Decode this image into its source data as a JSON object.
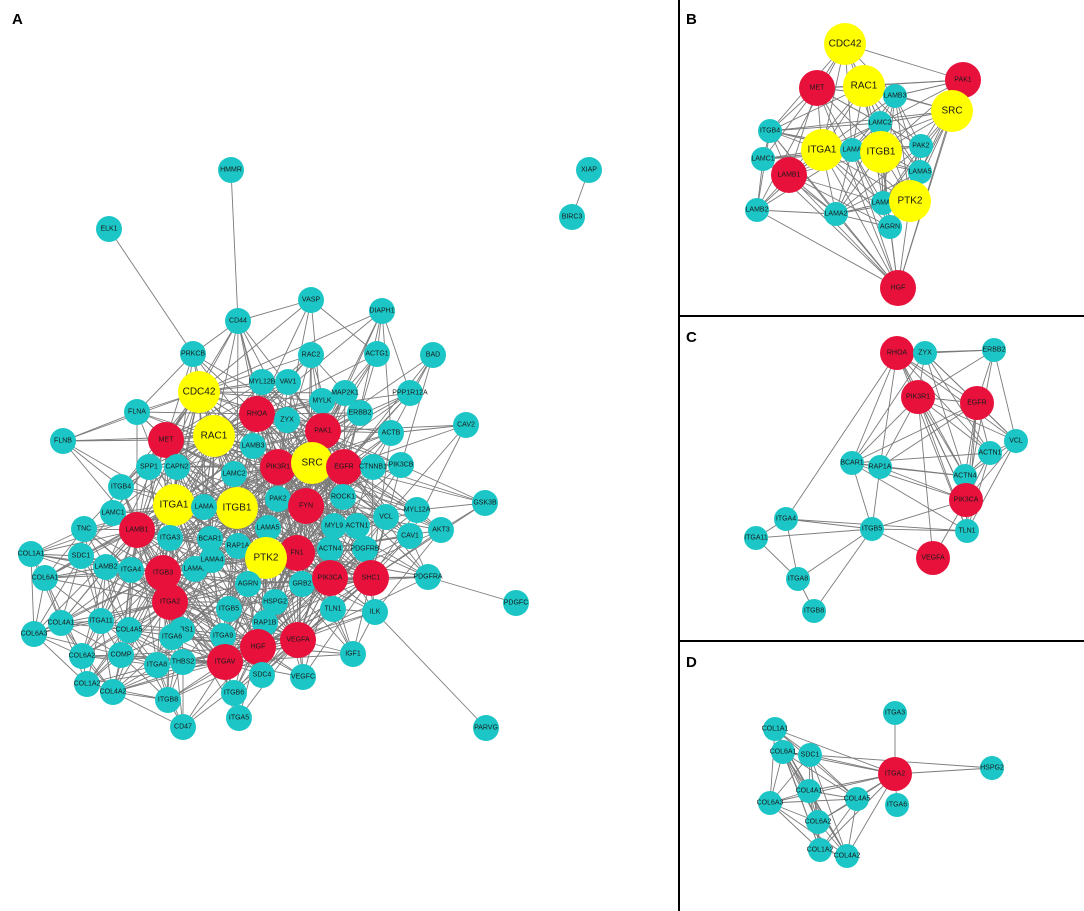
{
  "colors": {
    "hub": "#ffff00",
    "key": "#e8113b",
    "other": "#1cc6c6",
    "edge": "#7a7a7a"
  },
  "panels": [
    {
      "label": "A",
      "nodes": [
        {
          "id": "HMMR",
          "c": "other"
        },
        {
          "id": "ELK1",
          "c": "other"
        },
        {
          "id": "XIAP",
          "c": "other"
        },
        {
          "id": "BIRC3",
          "c": "other"
        },
        {
          "id": "VASP",
          "c": "other"
        },
        {
          "id": "DIAPH1",
          "c": "other"
        },
        {
          "id": "CD44",
          "c": "other"
        },
        {
          "id": "RAC2",
          "c": "other"
        },
        {
          "id": "PRKCB",
          "c": "other"
        },
        {
          "id": "ACTG1",
          "c": "other"
        },
        {
          "id": "BAD",
          "c": "other"
        },
        {
          "id": "MYL12B",
          "c": "other"
        },
        {
          "id": "VAV1",
          "c": "other"
        },
        {
          "id": "CDC42",
          "c": "hub"
        },
        {
          "id": "MYLK",
          "c": "other"
        },
        {
          "id": "MAP2K1",
          "c": "other"
        },
        {
          "id": "PPP1R12A",
          "c": "other"
        },
        {
          "id": "FLNA",
          "c": "other"
        },
        {
          "id": "RHOA",
          "c": "key"
        },
        {
          "id": "ZYX",
          "c": "other"
        },
        {
          "id": "ERBB2",
          "c": "other"
        },
        {
          "id": "CAV2",
          "c": "other"
        },
        {
          "id": "MET",
          "c": "key"
        },
        {
          "id": "RAC1",
          "c": "hub"
        },
        {
          "id": "LAMB3",
          "c": "other"
        },
        {
          "id": "PAK1",
          "c": "key"
        },
        {
          "id": "ACTB",
          "c": "other"
        },
        {
          "id": "FLNB",
          "c": "other"
        },
        {
          "id": "SPP1",
          "c": "other"
        },
        {
          "id": "CAPN2",
          "c": "other"
        },
        {
          "id": "PIK3R1",
          "c": "key"
        },
        {
          "id": "SRC",
          "c": "hub"
        },
        {
          "id": "EGFR",
          "c": "key"
        },
        {
          "id": "CTNNB1",
          "c": "other"
        },
        {
          "id": "PIK3CB",
          "c": "other"
        },
        {
          "id": "ITGB4",
          "c": "other"
        },
        {
          "id": "LAMC2",
          "c": "other"
        },
        {
          "id": "ROCK1",
          "c": "other"
        },
        {
          "id": "GSK3B",
          "c": "other"
        },
        {
          "id": "ITGA1",
          "c": "hub"
        },
        {
          "id": "ITGB1",
          "c": "hub"
        },
        {
          "id": "PAK2",
          "c": "other"
        },
        {
          "id": "FYN",
          "c": "key"
        },
        {
          "id": "MYL12A",
          "c": "other"
        },
        {
          "id": "LAMC1",
          "c": "other"
        },
        {
          "id": "LAMA",
          "c": "other"
        },
        {
          "id": "VCL",
          "c": "other"
        },
        {
          "id": "AKT3",
          "c": "other"
        },
        {
          "id": "TNC",
          "c": "other"
        },
        {
          "id": "LAMB1",
          "c": "key"
        },
        {
          "id": "ITGA3",
          "c": "other"
        },
        {
          "id": "LAMA5",
          "c": "other"
        },
        {
          "id": "MYL9",
          "c": "other"
        },
        {
          "id": "ACTN1",
          "c": "other"
        },
        {
          "id": "CAV1",
          "c": "other"
        },
        {
          "id": "BCAR1",
          "c": "other"
        },
        {
          "id": "RAP1A",
          "c": "other"
        },
        {
          "id": "COL1A1",
          "c": "other"
        },
        {
          "id": "SDC1",
          "c": "other"
        },
        {
          "id": "LAMB2",
          "c": "other"
        },
        {
          "id": "FN1",
          "c": "key"
        },
        {
          "id": "ACTN4",
          "c": "other"
        },
        {
          "id": "PDGFRB",
          "c": "other"
        },
        {
          "id": "PTK2",
          "c": "hub"
        },
        {
          "id": "COL6A1",
          "c": "other"
        },
        {
          "id": "ITGA4",
          "c": "other"
        },
        {
          "id": "LAMA2",
          "c": "other"
        },
        {
          "id": "LAMA4",
          "c": "other"
        },
        {
          "id": "ITGB3",
          "c": "key"
        },
        {
          "id": "PDGFRA",
          "c": "other"
        },
        {
          "id": "SHC1",
          "c": "key"
        },
        {
          "id": "AGRN",
          "c": "other"
        },
        {
          "id": "GRB2",
          "c": "other"
        },
        {
          "id": "PIK3CA",
          "c": "key"
        },
        {
          "id": "PDGFC",
          "c": "other"
        },
        {
          "id": "HSPG2",
          "c": "other"
        },
        {
          "id": "ITGA2",
          "c": "key"
        },
        {
          "id": "ITGB5",
          "c": "other"
        },
        {
          "id": "TLN1",
          "c": "other"
        },
        {
          "id": "ILK",
          "c": "other"
        },
        {
          "id": "COL4A1",
          "c": "other"
        },
        {
          "id": "ITGA11",
          "c": "other"
        },
        {
          "id": "COL4A5",
          "c": "other"
        },
        {
          "id": "THBS1",
          "c": "other"
        },
        {
          "id": "COL6A3",
          "c": "other"
        },
        {
          "id": "ITGA6",
          "c": "other"
        },
        {
          "id": "RAP1B",
          "c": "other"
        },
        {
          "id": "ITGA9",
          "c": "other"
        },
        {
          "id": "VEGFA",
          "c": "key"
        },
        {
          "id": "IGF1",
          "c": "other"
        },
        {
          "id": "COL6A2",
          "c": "other"
        },
        {
          "id": "COMP",
          "c": "other"
        },
        {
          "id": "HGF",
          "c": "key"
        },
        {
          "id": "ITGA8",
          "c": "other"
        },
        {
          "id": "THBS2",
          "c": "other"
        },
        {
          "id": "ITGAV",
          "c": "key"
        },
        {
          "id": "COL1A2",
          "c": "other"
        },
        {
          "id": "COL4A2",
          "c": "other"
        },
        {
          "id": "SDC4",
          "c": "other"
        },
        {
          "id": "VEGFC",
          "c": "other"
        },
        {
          "id": "ITGB6",
          "c": "other"
        },
        {
          "id": "ITGB8",
          "c": "other"
        },
        {
          "id": "CD47",
          "c": "other"
        },
        {
          "id": "ITGA5",
          "c": "other"
        },
        {
          "id": "PARVG",
          "c": "other"
        }
      ]
    },
    {
      "label": "B",
      "nodes": [
        {
          "id": "CDC42",
          "c": "hub"
        },
        {
          "id": "PAK1",
          "c": "key"
        },
        {
          "id": "MET",
          "c": "key"
        },
        {
          "id": "RAC1",
          "c": "hub"
        },
        {
          "id": "LAMB3",
          "c": "other"
        },
        {
          "id": "SRC",
          "c": "hub"
        },
        {
          "id": "LAMC2",
          "c": "other"
        },
        {
          "id": "ITGB4",
          "c": "other"
        },
        {
          "id": "ITGA1",
          "c": "hub"
        },
        {
          "id": "LAMA",
          "c": "other"
        },
        {
          "id": "ITGB1",
          "c": "hub"
        },
        {
          "id": "PAK2",
          "c": "other"
        },
        {
          "id": "LAMC1",
          "c": "other"
        },
        {
          "id": "LAMB1",
          "c": "key"
        },
        {
          "id": "LAMA5",
          "c": "other"
        },
        {
          "id": "LAMA4",
          "c": "other"
        },
        {
          "id": "PTK2",
          "c": "hub"
        },
        {
          "id": "LAMB2",
          "c": "other"
        },
        {
          "id": "LAMA2",
          "c": "other"
        },
        {
          "id": "AGRN",
          "c": "other"
        },
        {
          "id": "HGF",
          "c": "key"
        }
      ]
    },
    {
      "label": "C",
      "nodes": [
        {
          "id": "RHOA",
          "c": "key"
        },
        {
          "id": "ZYX",
          "c": "other"
        },
        {
          "id": "ERBB2",
          "c": "other"
        },
        {
          "id": "PIK3R1",
          "c": "key"
        },
        {
          "id": "EGFR",
          "c": "key"
        },
        {
          "id": "ACTN1",
          "c": "other"
        },
        {
          "id": "VCL",
          "c": "other"
        },
        {
          "id": "BCAR1",
          "c": "other"
        },
        {
          "id": "RAP1A",
          "c": "other"
        },
        {
          "id": "ACTN4",
          "c": "other"
        },
        {
          "id": "PIK3CA",
          "c": "key"
        },
        {
          "id": "ITGA4",
          "c": "other"
        },
        {
          "id": "TLN1",
          "c": "other"
        },
        {
          "id": "ITGB5",
          "c": "other"
        },
        {
          "id": "ITGA11",
          "c": "other"
        },
        {
          "id": "VEGFA",
          "c": "key"
        },
        {
          "id": "ITGA8",
          "c": "other"
        },
        {
          "id": "ITGB8",
          "c": "other"
        }
      ]
    },
    {
      "label": "D",
      "nodes": [
        {
          "id": "ITGA3",
          "c": "other"
        },
        {
          "id": "COL1A1",
          "c": "other"
        },
        {
          "id": "COL6A1",
          "c": "other"
        },
        {
          "id": "SDC1",
          "c": "other"
        },
        {
          "id": "ITGA2",
          "c": "key"
        },
        {
          "id": "HSPG2",
          "c": "other"
        },
        {
          "id": "COL4A1",
          "c": "other"
        },
        {
          "id": "COL4A5",
          "c": "other"
        },
        {
          "id": "COL6A3",
          "c": "other"
        },
        {
          "id": "ITGA6",
          "c": "other"
        },
        {
          "id": "COL6A2",
          "c": "other"
        },
        {
          "id": "COL1A2",
          "c": "other"
        },
        {
          "id": "COL4A2",
          "c": "other"
        }
      ]
    }
  ]
}
